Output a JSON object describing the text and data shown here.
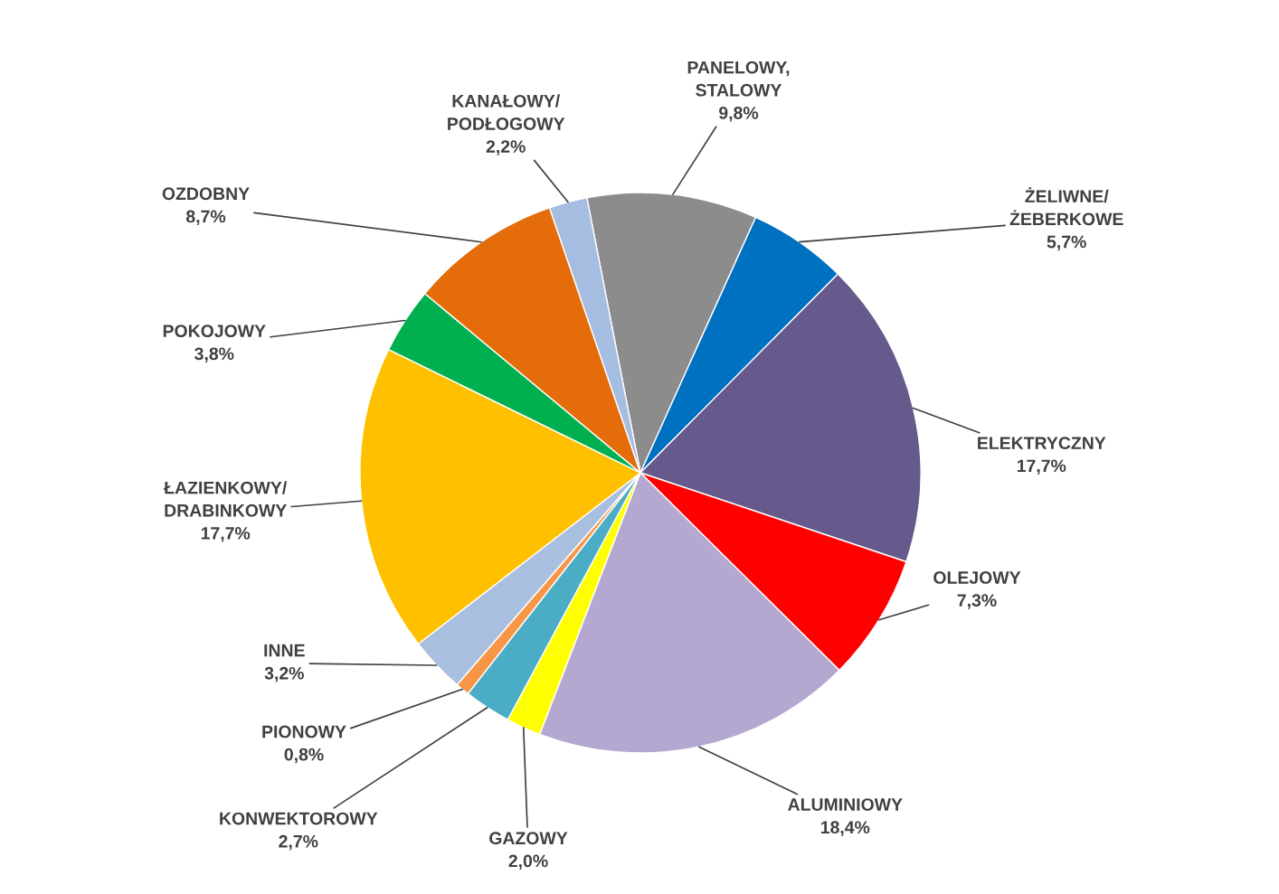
{
  "chart_data": {
    "type": "pie",
    "categories": [
      "PANELOWY,\nSTALOWY",
      "ŻELIWNE/\nŻEBERKOWE",
      "ELEKTRYCZNY",
      "OLEJOWY",
      "ALUMINIOWY",
      "GAZOWY",
      "KONWEKTOROWY",
      "PIONOWY",
      "INNE",
      "ŁAZIENKOWY/\nDRABINKOWY",
      "POKOJOWY",
      "OZDOBNY",
      "KANAŁOWY/\nPODŁOGOWY"
    ],
    "values": [
      9.8,
      5.7,
      17.7,
      7.3,
      18.4,
      2.0,
      2.7,
      0.8,
      3.2,
      17.7,
      3.8,
      8.7,
      2.2
    ],
    "value_labels": [
      "9,8%",
      "5,7%",
      "17,7%",
      "7,3%",
      "18,4%",
      "2,0%",
      "2,7%",
      "0,8%",
      "3,2%",
      "17,7%",
      "3,8%",
      "8,7%",
      "2,2%"
    ],
    "colors": [
      "#8c8c8c",
      "#0070c0",
      "#665a8c",
      "#ff0000",
      "#b4a7d0",
      "#ffff00",
      "#4bacc6",
      "#f79646",
      "#a9bfdf",
      "#ffc000",
      "#00b050",
      "#e46c0a",
      "#a5bde0"
    ],
    "legend": false
  }
}
